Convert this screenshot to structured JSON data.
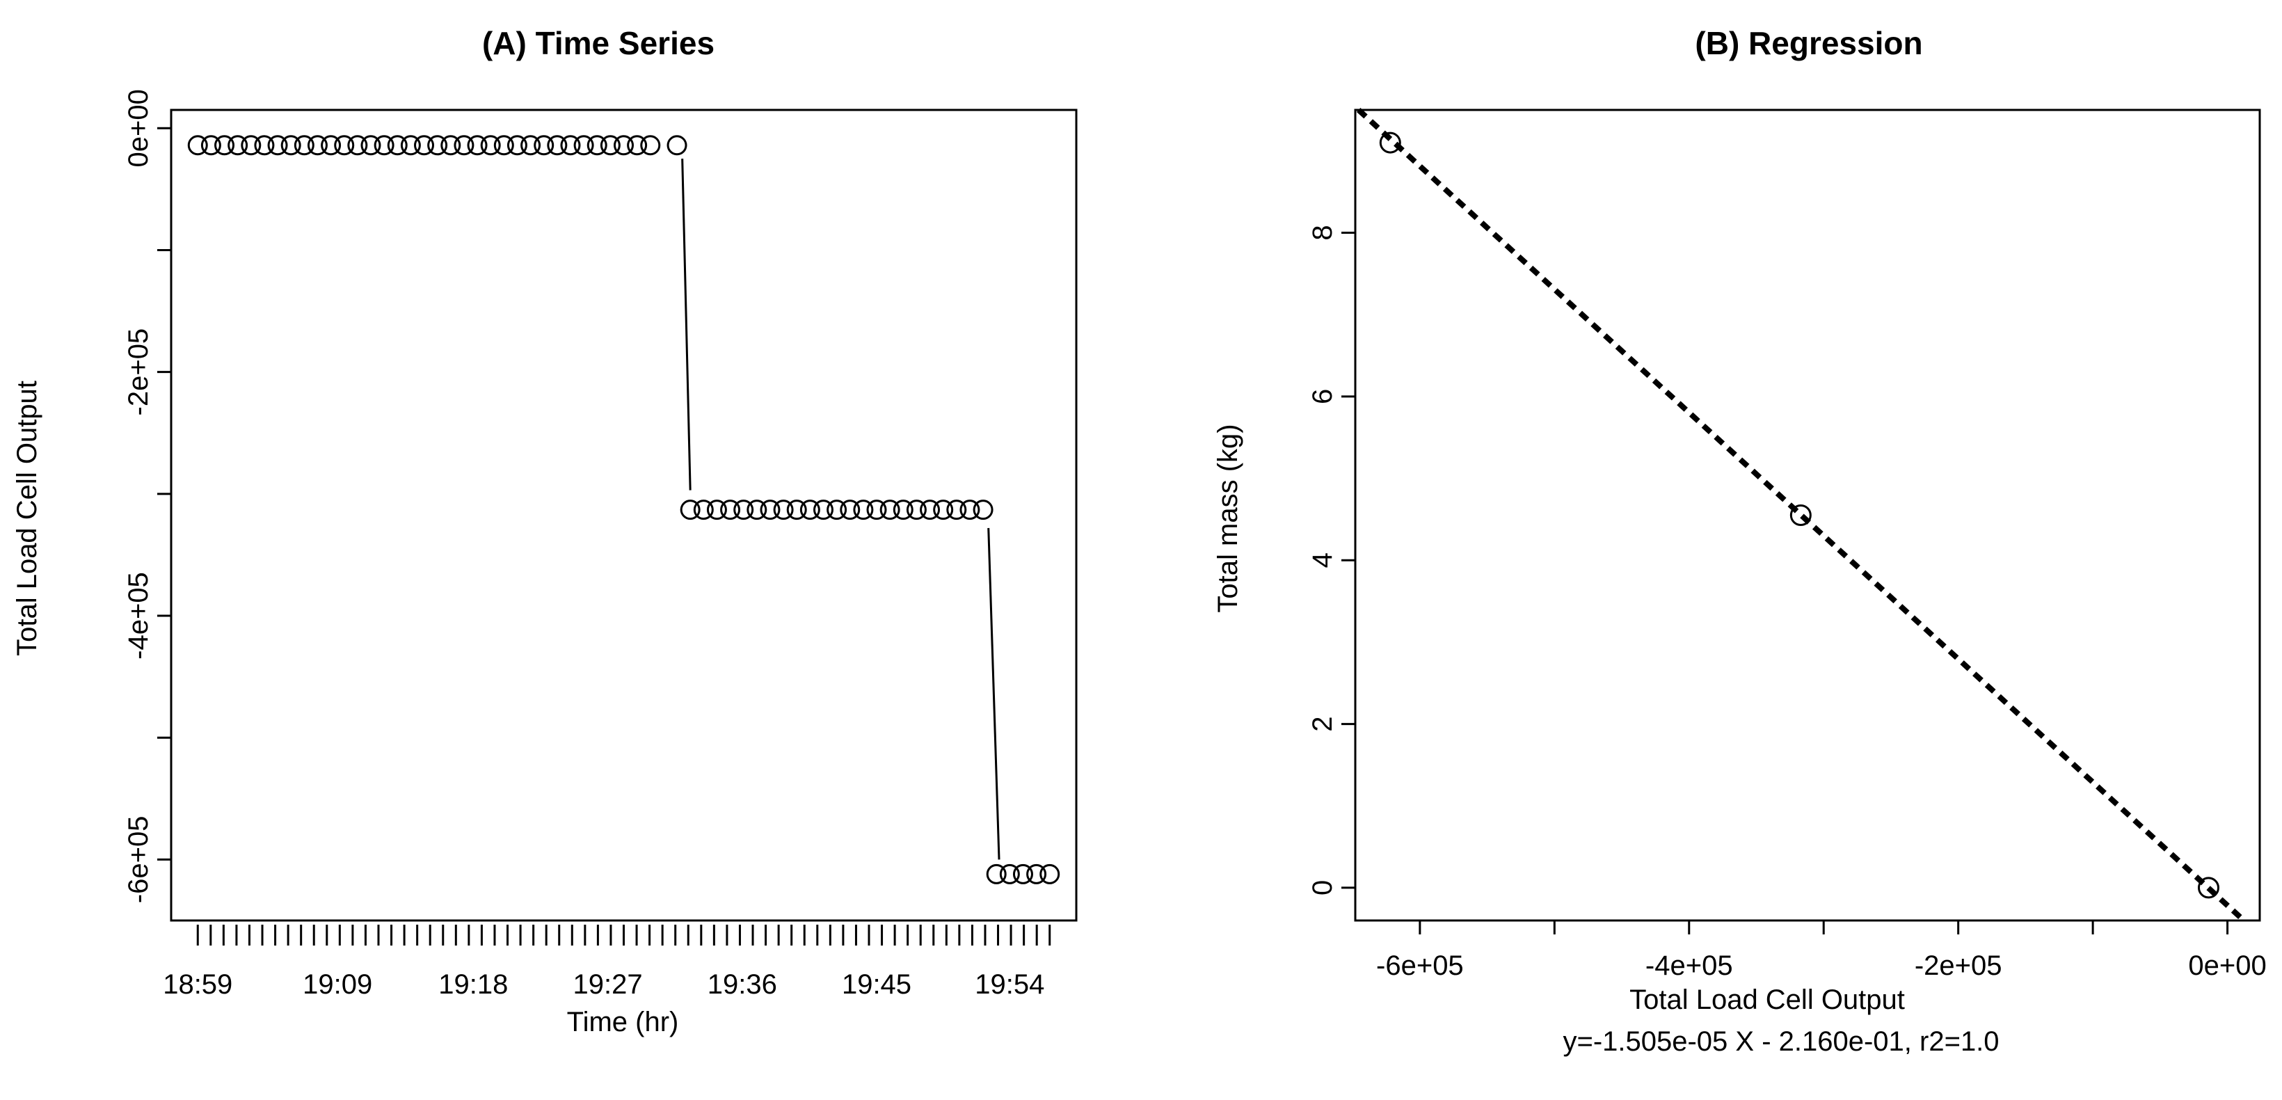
{
  "chart_data": [
    {
      "type": "scatter",
      "title": "(A) Time Series",
      "xlabel": "Time (hr)",
      "ylabel": "Total Load Cell Output",
      "x_tick_labels": [
        "18:59",
        "19:09",
        "19:18",
        "19:27",
        "19:36",
        "19:45",
        "19:54"
      ],
      "y_tick_labels": [
        "0e+00",
        "-2e+05",
        "-4e+05",
        "-6e+05"
      ],
      "y_ticks": [
        0,
        -100000,
        -200000,
        -300000,
        -400000,
        -500000,
        -600000
      ],
      "ylim": [
        -650000,
        15000
      ],
      "minor_x_ticks": 67,
      "series": [
        {
          "x": [
            0,
            1,
            2,
            3,
            4,
            5,
            6,
            7,
            8,
            9,
            10,
            11,
            12,
            13,
            14,
            15,
            16,
            17,
            18,
            19,
            20,
            21,
            22,
            23,
            24,
            25,
            26,
            27,
            28,
            29,
            30,
            31,
            32,
            33,
            34
          ],
          "y": [
            -14000,
            -14000,
            -14000,
            -14000,
            -14000,
            -14000,
            -14000,
            -14000,
            -14000,
            -14000,
            -14000,
            -14000,
            -14000,
            -14000,
            -14000,
            -14000,
            -14000,
            -14000,
            -14000,
            -14000,
            -14000,
            -14000,
            -14000,
            -14000,
            -14000,
            -14000,
            -14000,
            -14000,
            -14000,
            -14000,
            -14000,
            -14000,
            -14000,
            -14000,
            -14000
          ]
        },
        {
          "x": [
            36
          ],
          "y": [
            -14000
          ]
        },
        {
          "x": [
            37,
            38,
            39,
            40,
            41,
            42,
            43,
            44,
            45,
            46,
            47,
            48,
            49,
            50,
            51,
            52,
            53,
            54,
            55,
            56,
            57,
            58,
            59
          ],
          "y": [
            -313000,
            -313000,
            -313000,
            -313000,
            -313000,
            -313000,
            -313000,
            -313000,
            -313000,
            -313000,
            -313000,
            -313000,
            -313000,
            -313000,
            -313000,
            -313000,
            -313000,
            -313000,
            -313000,
            -313000,
            -313000,
            -313000,
            -313000
          ]
        },
        {
          "x": [
            60,
            61,
            62,
            63,
            64
          ],
          "y": [
            -612000,
            -612000,
            -612000,
            -612000,
            -612000
          ]
        }
      ],
      "transitions": [
        {
          "from": [
            36.4,
            -25000
          ],
          "to": [
            37.0,
            -297000
          ]
        },
        {
          "from": [
            59.4,
            -328000
          ],
          "to": [
            60.2,
            -600000
          ]
        }
      ],
      "xlim": [
        -2,
        66
      ]
    },
    {
      "type": "scatter",
      "title": "(B) Regression",
      "xlabel": "Total Load Cell Output",
      "subtitle": "y=-1.505e-05 X - 2.160e-01, r2=1.0",
      "ylabel": "Total mass (kg)",
      "x_tick_labels": [
        "-6e+05",
        "-4e+05",
        "-2e+05",
        "0e+00"
      ],
      "x_ticks": [
        -600000,
        -500000,
        -400000,
        -300000,
        -200000,
        -100000,
        0
      ],
      "y_tick_labels": [
        "0",
        "2",
        "4",
        "6",
        "8"
      ],
      "y_ticks": [
        0,
        2,
        4,
        6,
        8
      ],
      "xlim": [
        -648000,
        24000
      ],
      "ylim": [
        -0.4,
        9.5
      ],
      "points": {
        "x": [
          -622000,
          -317000,
          -14000
        ],
        "y": [
          9.1,
          4.55,
          0.0
        ]
      },
      "fit": {
        "slope": -1.505e-05,
        "intercept": -0.216
      }
    }
  ]
}
